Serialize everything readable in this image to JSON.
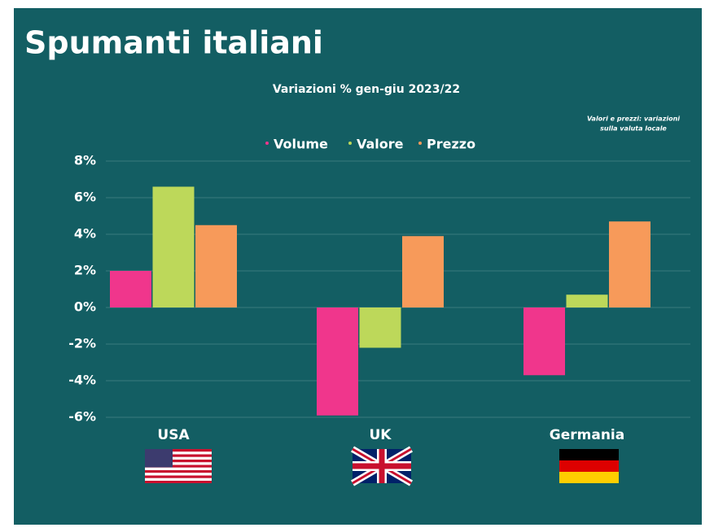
{
  "chart_data": {
    "type": "bar",
    "title": "Spumanti italiani",
    "subtitle": "Variazioni % gen-giu 2023/22",
    "annotation": [
      "Valori e prezzi: variazioni",
      "sulla valuta locale"
    ],
    "categories": [
      "USA",
      "UK",
      "Germania"
    ],
    "series": [
      {
        "name": "Volume",
        "color": "#f0368c",
        "values": [
          2.0,
          -5.9,
          -3.7
        ]
      },
      {
        "name": "Valore",
        "color": "#bdd85a",
        "values": [
          6.6,
          -2.2,
          0.7
        ]
      },
      {
        "name": "Prezzo",
        "color": "#f79a5a",
        "values": [
          4.5,
          3.9,
          4.7
        ]
      }
    ],
    "ylim": [
      -6,
      8
    ],
    "yticks": [
      {
        "value": -6,
        "label": "-6%"
      },
      {
        "value": -4,
        "label": "-4%"
      },
      {
        "value": -2,
        "label": "-2%"
      },
      {
        "value": 0,
        "label": "0%"
      },
      {
        "value": 2,
        "label": "2%"
      },
      {
        "value": 4,
        "label": "4%"
      },
      {
        "value": 6,
        "label": "6%"
      },
      {
        "value": 8,
        "label": "8%"
      }
    ],
    "grid": true
  }
}
